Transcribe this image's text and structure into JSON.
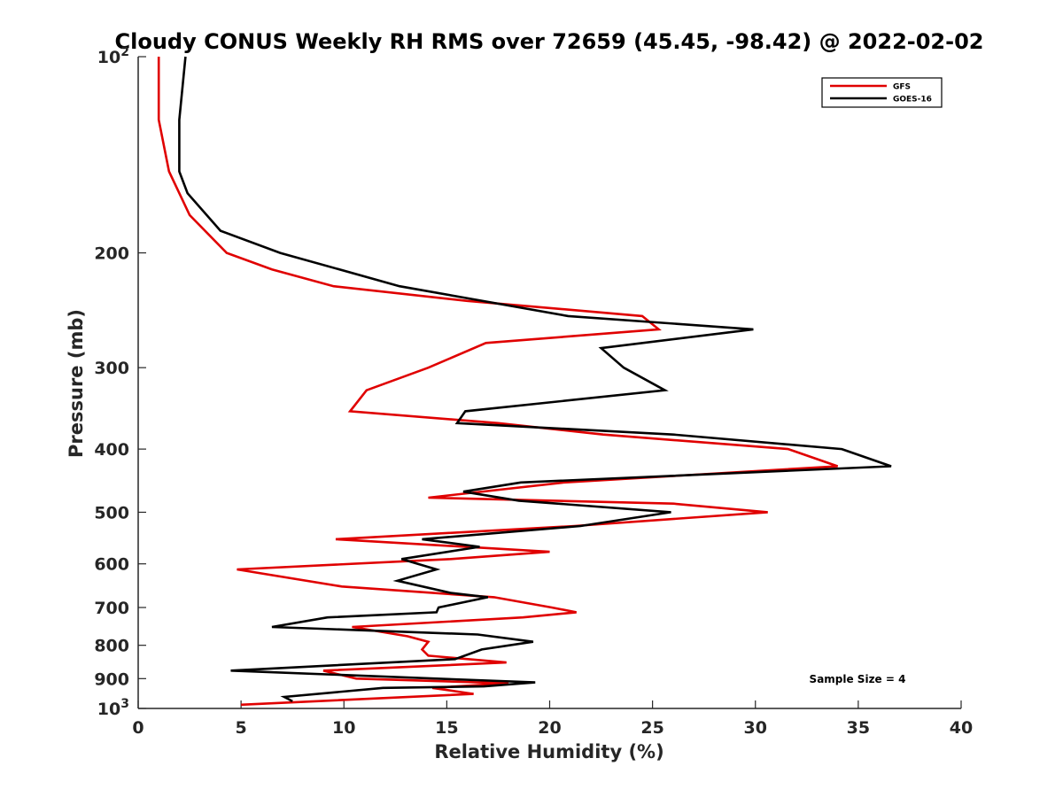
{
  "chart_data": {
    "type": "line",
    "title": "Cloudy CONUS Weekly RH RMS over 72659 (45.45, -98.42) @ 2022-02-02",
    "xlabel": "Relative Humidity (%)",
    "ylabel": "Pressure (mb)",
    "xlim": [
      0,
      40
    ],
    "ylim": [
      100,
      1000
    ],
    "yscale": "log",
    "yreversed": true,
    "x_ticks": [
      "0",
      "5",
      "10",
      "15",
      "20",
      "25",
      "30",
      "35",
      "40"
    ],
    "y_ticks": [
      {
        "value": 100,
        "base": "10",
        "exp": "2"
      },
      {
        "value": 200,
        "base": "200",
        "exp": ""
      },
      {
        "value": 300,
        "base": "300",
        "exp": ""
      },
      {
        "value": 400,
        "base": "400",
        "exp": ""
      },
      {
        "value": 500,
        "base": "500",
        "exp": ""
      },
      {
        "value": 600,
        "base": "600",
        "exp": ""
      },
      {
        "value": 700,
        "base": "700",
        "exp": ""
      },
      {
        "value": 800,
        "base": "800",
        "exp": ""
      },
      {
        "value": 900,
        "base": "900",
        "exp": ""
      },
      {
        "value": 1000,
        "base": "10",
        "exp": "3"
      }
    ],
    "grid": false,
    "legend_position": "top-right",
    "annotation": "Sample Size = 4",
    "series": [
      {
        "name": "GFS",
        "color": "#e00000",
        "points": [
          [
            1.0,
            100
          ],
          [
            1.0,
            125
          ],
          [
            1.5,
            150
          ],
          [
            2.5,
            175
          ],
          [
            4.3,
            200
          ],
          [
            6.5,
            212
          ],
          [
            9.5,
            225
          ],
          [
            16.0,
            237
          ],
          [
            24.5,
            250
          ],
          [
            25.3,
            262
          ],
          [
            16.9,
            275
          ],
          [
            14.1,
            300
          ],
          [
            11.1,
            325
          ],
          [
            10.3,
            350
          ],
          [
            17.5,
            365
          ],
          [
            22.6,
            380
          ],
          [
            31.6,
            400
          ],
          [
            34.0,
            425
          ],
          [
            20.7,
            450
          ],
          [
            14.1,
            475
          ],
          [
            26.0,
            485
          ],
          [
            30.6,
            500
          ],
          [
            21.2,
            525
          ],
          [
            9.6,
            550
          ],
          [
            20.0,
            575
          ],
          [
            15.2,
            590
          ],
          [
            4.8,
            612
          ],
          [
            9.9,
            650
          ],
          [
            17.3,
            675
          ],
          [
            20.1,
            700
          ],
          [
            21.3,
            712
          ],
          [
            18.7,
            725
          ],
          [
            10.4,
            750
          ],
          [
            13.1,
            775
          ],
          [
            14.1,
            790
          ],
          [
            13.8,
            812
          ],
          [
            14.1,
            830
          ],
          [
            17.9,
            850
          ],
          [
            9.0,
            875
          ],
          [
            10.6,
            900
          ],
          [
            18.0,
            915
          ],
          [
            14.3,
            930
          ],
          [
            16.3,
            950
          ],
          [
            5.0,
            987
          ]
        ]
      },
      {
        "name": "GOES-16",
        "color": "#000000",
        "points": [
          [
            2.3,
            100
          ],
          [
            2.0,
            125
          ],
          [
            2.0,
            150
          ],
          [
            2.4,
            162
          ],
          [
            4.0,
            185
          ],
          [
            6.9,
            200
          ],
          [
            12.7,
            225
          ],
          [
            20.9,
            250
          ],
          [
            29.9,
            262
          ],
          [
            22.5,
            280
          ],
          [
            23.6,
            300
          ],
          [
            25.6,
            325
          ],
          [
            15.9,
            350
          ],
          [
            15.5,
            365
          ],
          [
            26.0,
            380
          ],
          [
            34.2,
            400
          ],
          [
            36.6,
            425
          ],
          [
            18.6,
            450
          ],
          [
            15.8,
            465
          ],
          [
            18.5,
            480
          ],
          [
            25.9,
            500
          ],
          [
            21.5,
            525
          ],
          [
            13.8,
            550
          ],
          [
            16.6,
            565
          ],
          [
            12.8,
            590
          ],
          [
            14.5,
            612
          ],
          [
            12.6,
            637
          ],
          [
            15.2,
            665
          ],
          [
            17.0,
            675
          ],
          [
            14.6,
            700
          ],
          [
            14.5,
            712
          ],
          [
            9.2,
            725
          ],
          [
            6.5,
            750
          ],
          [
            16.5,
            770
          ],
          [
            19.2,
            790
          ],
          [
            16.7,
            812
          ],
          [
            15.4,
            840
          ],
          [
            4.5,
            875
          ],
          [
            19.3,
            912
          ],
          [
            16.8,
            925
          ],
          [
            11.9,
            930
          ],
          [
            7.1,
            960
          ],
          [
            7.5,
            975
          ]
        ]
      }
    ]
  }
}
